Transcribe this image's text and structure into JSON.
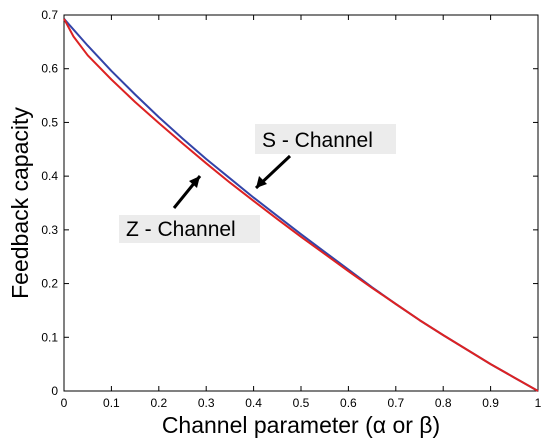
{
  "chart_data": {
    "type": "line",
    "xlabel": "Channel parameter (α or β)",
    "ylabel": "Feedback capacity",
    "xlim": [
      0,
      1
    ],
    "ylim": [
      0,
      0.7
    ],
    "xticks": [
      "0",
      "0.1",
      "0.2",
      "0.3",
      "0.4",
      "0.5",
      "0.6",
      "0.7",
      "0.8",
      "0.9",
      "1"
    ],
    "yticks": [
      "0",
      "0.1",
      "0.2",
      "0.3",
      "0.4",
      "0.5",
      "0.6",
      "0.7"
    ],
    "grid": false,
    "series": [
      {
        "name": "S - Channel",
        "color": "#3344a8",
        "x": [
          0,
          0.05,
          0.1,
          0.15,
          0.2,
          0.25,
          0.3,
          0.35,
          0.4,
          0.45,
          0.5,
          0.55,
          0.6,
          0.65,
          0.7,
          0.75,
          0.8,
          0.85,
          0.9,
          0.95,
          1.0
        ],
        "y": [
          0.693,
          0.643,
          0.596,
          0.552,
          0.51,
          0.47,
          0.432,
          0.396,
          0.36,
          0.326,
          0.292,
          0.259,
          0.226,
          0.193,
          0.162,
          0.132,
          0.104,
          0.077,
          0.05,
          0.025,
          0
        ]
      },
      {
        "name": "Z - Channel",
        "color": "#dd2222",
        "x": [
          0,
          0.02,
          0.05,
          0.1,
          0.15,
          0.2,
          0.25,
          0.3,
          0.35,
          0.4,
          0.45,
          0.5,
          0.55,
          0.6,
          0.65,
          0.7,
          0.75,
          0.8,
          0.85,
          0.9,
          0.95,
          1.0
        ],
        "y": [
          0.693,
          0.66,
          0.625,
          0.58,
          0.538,
          0.499,
          0.461,
          0.424,
          0.388,
          0.354,
          0.32,
          0.287,
          0.255,
          0.223,
          0.192,
          0.162,
          0.132,
          0.104,
          0.077,
          0.05,
          0.025,
          0
        ]
      }
    ],
    "annotations": [
      {
        "text": "S - Channel",
        "arrow_to": [
          0.395,
          0.368
        ]
      },
      {
        "text": "Z - Channel",
        "arrow_to": [
          0.288,
          0.405
        ]
      }
    ]
  }
}
